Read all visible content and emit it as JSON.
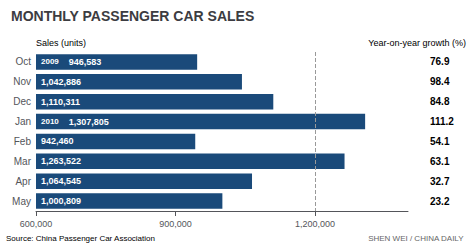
{
  "chart_data": {
    "type": "bar",
    "orientation": "horizontal",
    "title": "MONTHLY PASSENGER CAR SALES",
    "categories": [
      "Oct",
      "Nov",
      "Dec",
      "Jan",
      "Feb",
      "Mar",
      "Apr",
      "May"
    ],
    "values": [
      946583,
      1042886,
      1110311,
      1307805,
      942460,
      1263522,
      1064545,
      1000809
    ],
    "value_labels": [
      "946,583",
      "1,042,886",
      "1,110,311",
      "1,307,805",
      "942,460",
      "1,263,522",
      "1,064,545",
      "1,000,809"
    ],
    "data_labels": true,
    "color": "#1a4a7a",
    "xlabel": "Sales (units)",
    "xlim": [
      600000,
      1400000
    ],
    "xticks": [
      {
        "value": 600000,
        "label": "600,000"
      },
      {
        "value": 900000,
        "label": "900,000"
      },
      {
        "value": 1200000,
        "label": "1,200,000"
      }
    ],
    "grid": false,
    "annotations": [
      {
        "category": "Oct",
        "text": "2009"
      },
      {
        "category": "Jan",
        "text": "2010"
      }
    ],
    "reference_line": {
      "x": 1200000,
      "line_style": "dashed"
    },
    "yoy_title": "Year-on-year growth (%)",
    "yoy_growth": [
      76.9,
      98.4,
      84.8,
      111.2,
      54.1,
      63.1,
      32.7,
      23.2
    ],
    "source": "Source: China Passenger Car Association",
    "credit": "SHEN WEI / CHINA DAILY"
  }
}
